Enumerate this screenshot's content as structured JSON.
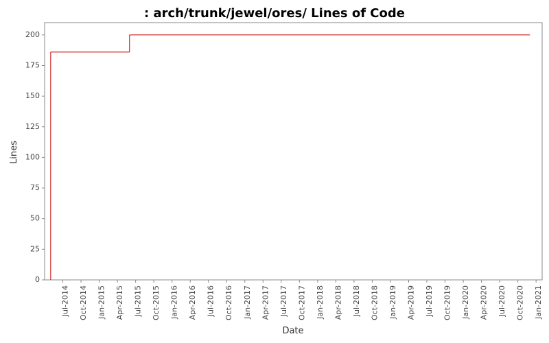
{
  "chart_data": {
    "type": "step",
    "title": ": arch/trunk/jewel/ores/ Lines of Code",
    "x_label": "Date",
    "y_label": "Lines",
    "x": [
      "2014-05",
      "2015-06",
      "2020-12"
    ],
    "series": [
      {
        "name": "Lines",
        "color": "#cc0000",
        "values": [
          186,
          200,
          200
        ]
      }
    ],
    "xlim": [
      "2014-04",
      "2021-02"
    ],
    "xticks": [
      {
        "value": "2014-07",
        "label": "Jul-2014"
      },
      {
        "value": "2014-10",
        "label": "Oct-2014"
      },
      {
        "value": "2015-01",
        "label": "Jan-2015"
      },
      {
        "value": "2015-04",
        "label": "Apr-2015"
      },
      {
        "value": "2015-07",
        "label": "Jul-2015"
      },
      {
        "value": "2015-10",
        "label": "Oct-2015"
      },
      {
        "value": "2016-01",
        "label": "Jan-2016"
      },
      {
        "value": "2016-04",
        "label": "Apr-2016"
      },
      {
        "value": "2016-07",
        "label": "Jul-2016"
      },
      {
        "value": "2016-10",
        "label": "Oct-2016"
      },
      {
        "value": "2017-01",
        "label": "Jan-2017"
      },
      {
        "value": "2017-04",
        "label": "Apr-2017"
      },
      {
        "value": "2017-07",
        "label": "Jul-2017"
      },
      {
        "value": "2017-10",
        "label": "Oct-2017"
      },
      {
        "value": "2018-01",
        "label": "Jan-2018"
      },
      {
        "value": "2018-04",
        "label": "Apr-2018"
      },
      {
        "value": "2018-07",
        "label": "Jul-2018"
      },
      {
        "value": "2018-10",
        "label": "Oct-2018"
      },
      {
        "value": "2019-01",
        "label": "Jan-2019"
      },
      {
        "value": "2019-04",
        "label": "Apr-2019"
      },
      {
        "value": "2019-07",
        "label": "Jul-2019"
      },
      {
        "value": "2019-10",
        "label": "Oct-2019"
      },
      {
        "value": "2020-01",
        "label": "Jan-2020"
      },
      {
        "value": "2020-04",
        "label": "Apr-2020"
      },
      {
        "value": "2020-07",
        "label": "Jul-2020"
      },
      {
        "value": "2020-10",
        "label": "Oct-2020"
      },
      {
        "value": "2021-01",
        "label": "Jan-2021"
      }
    ],
    "ylim": [
      0,
      210
    ],
    "yticks": [
      0,
      25,
      50,
      75,
      100,
      125,
      150,
      175,
      200
    ],
    "grid": false
  }
}
